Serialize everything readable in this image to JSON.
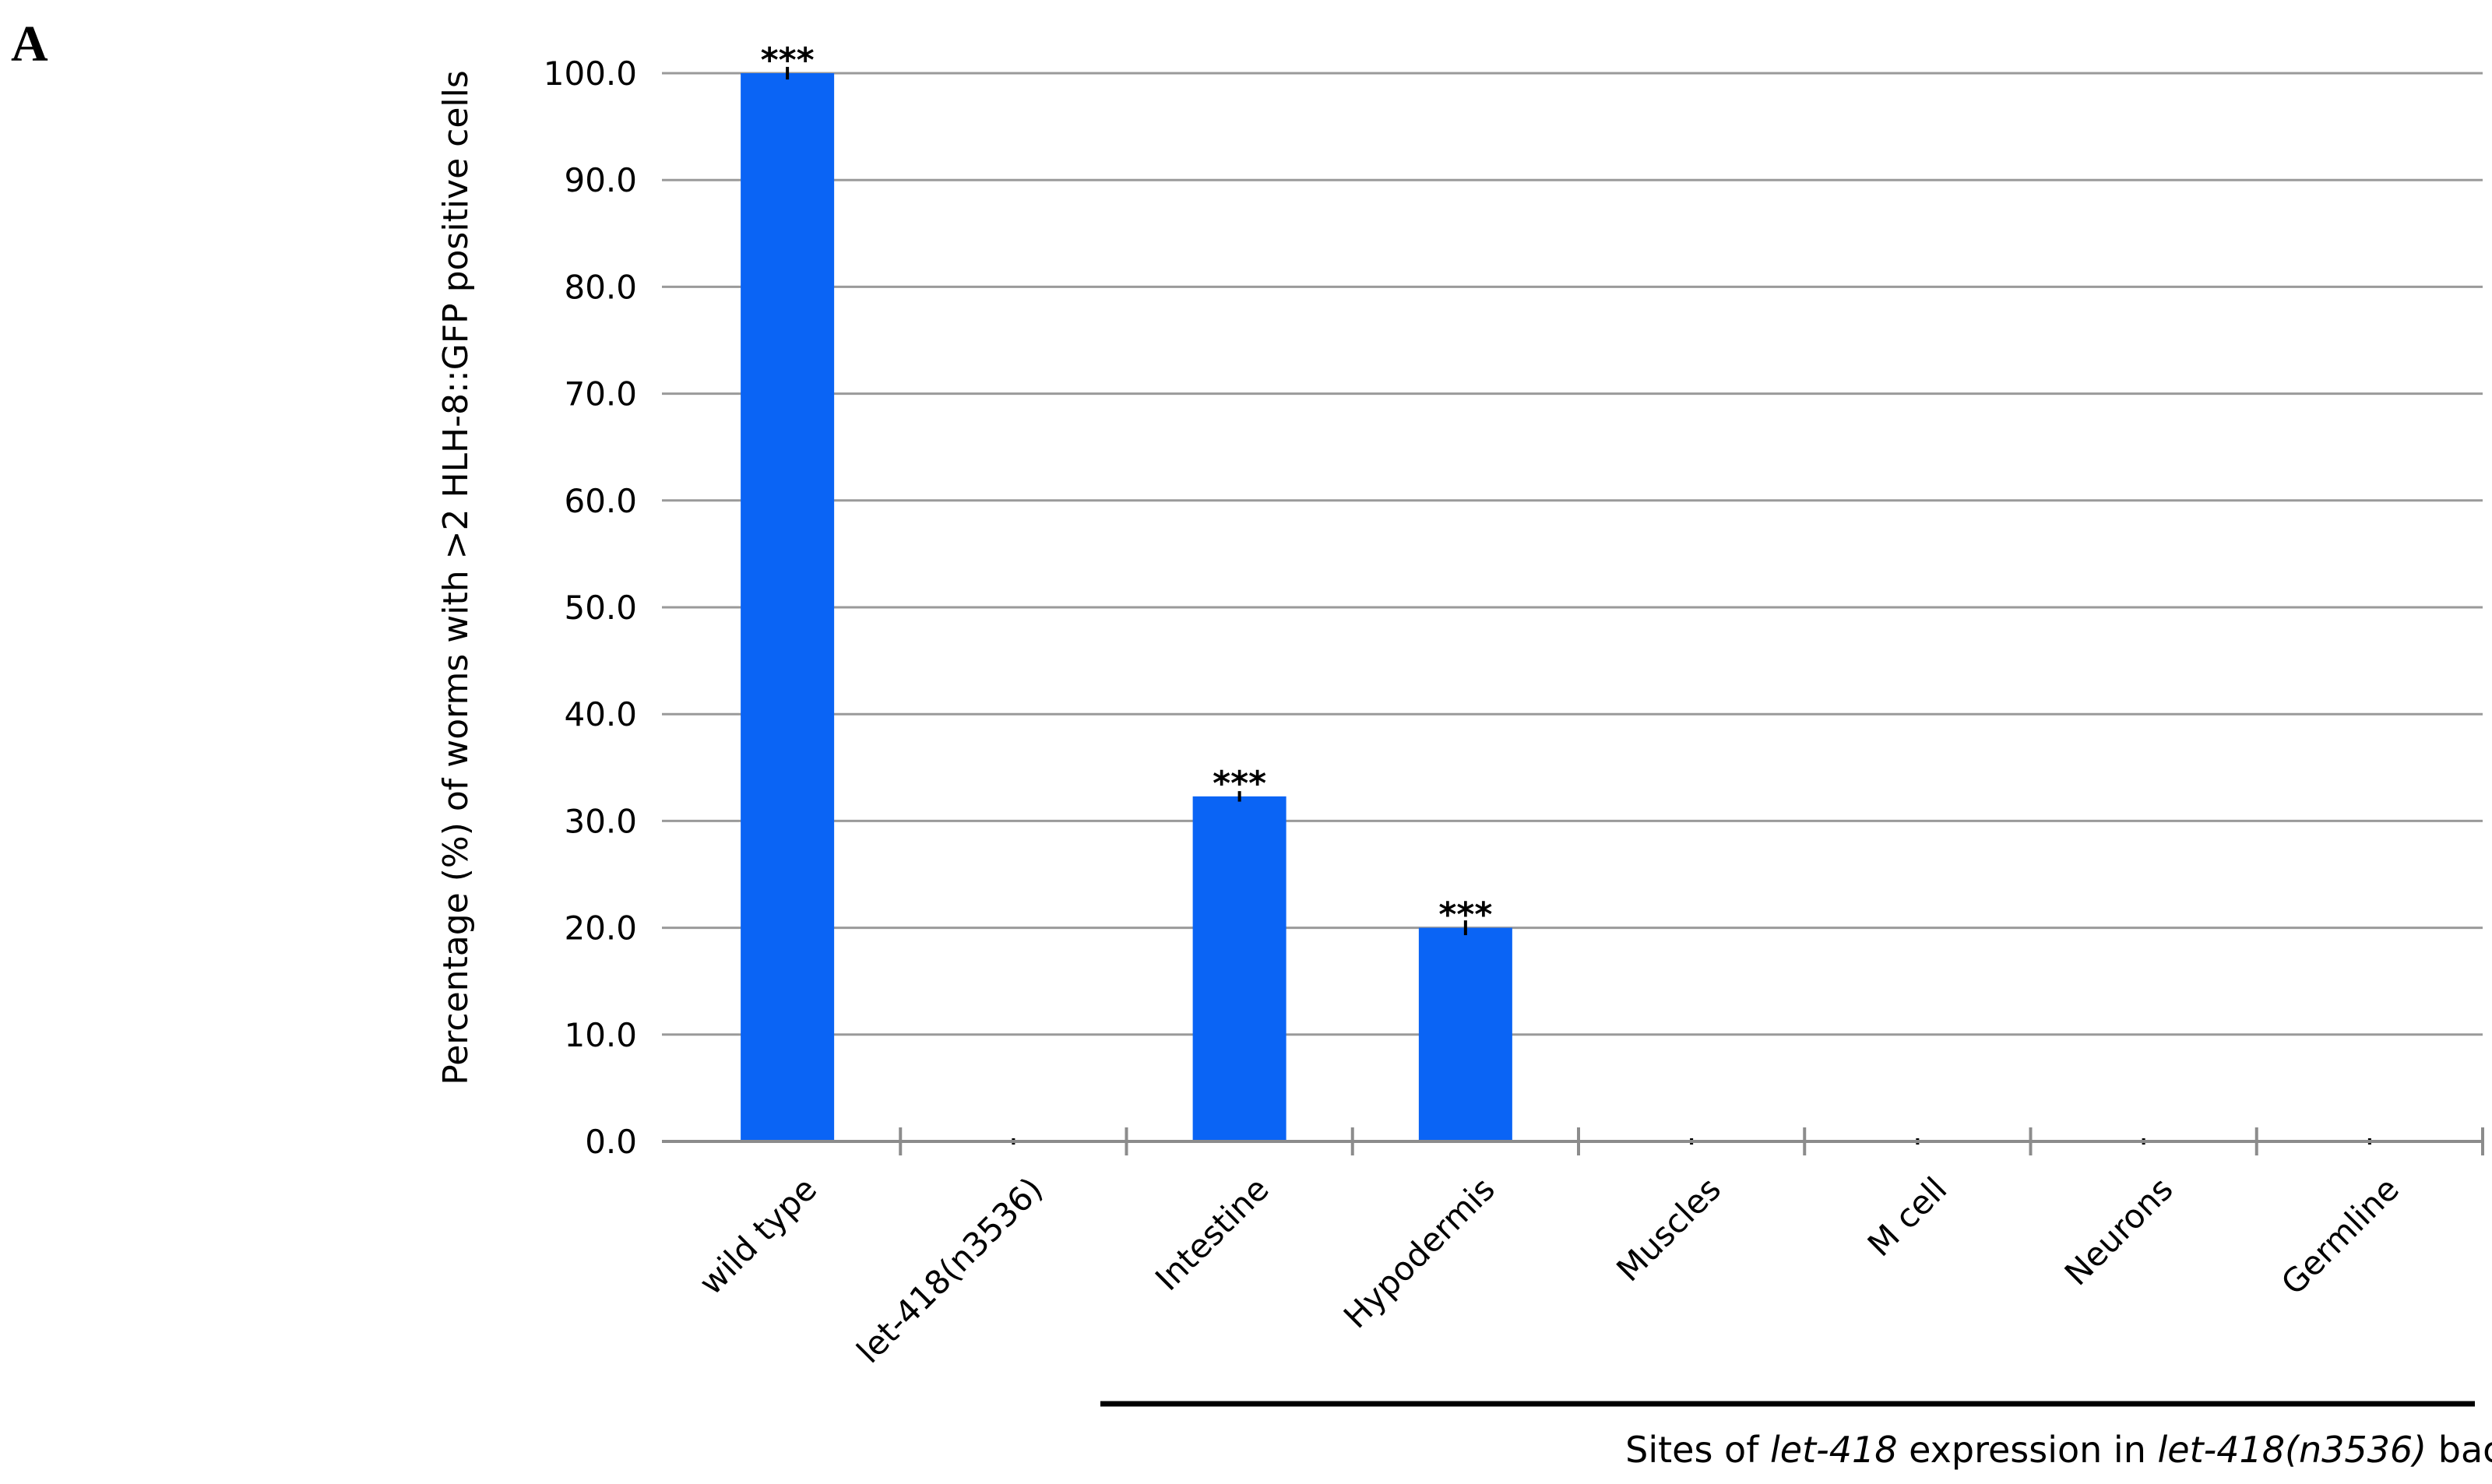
{
  "panel_label": "A",
  "chart_data": {
    "type": "bar",
    "ylabel": "Percentage (%) of worms with >2 HLH-8::GFP positive cells",
    "ylim": [
      0,
      100
    ],
    "yticks": [
      "0.0",
      "10.0",
      "20.0",
      "30.0",
      "40.0",
      "50.0",
      "60.0",
      "70.0",
      "80.0",
      "90.0",
      "100.0"
    ],
    "grid": true,
    "categories": [
      "wild type",
      "let-418(n3536)",
      "Intestine",
      "Hypodermis",
      "Muscles",
      "M cell",
      "Neurons",
      "Germline"
    ],
    "values": [
      100.0,
      0.0,
      32.3,
      20.0,
      0.0,
      0.0,
      0.0,
      0.0
    ],
    "errors": [
      0.3,
      0.0,
      0.2,
      0.4,
      0.0,
      0.0,
      0.0,
      0.0
    ],
    "annotations": [
      "***",
      "",
      "***",
      "***",
      "",
      "",
      "",
      ""
    ],
    "bar_color": "#0a64f5",
    "bracket": {
      "parts": [
        {
          "text": "Sites of ",
          "italic": false
        },
        {
          "text": "let-418",
          "italic": true
        },
        {
          "text": " expression in ",
          "italic": false
        },
        {
          "text": "let-418(n3536)",
          "italic": true
        },
        {
          "text": " background",
          "italic": false
        }
      ]
    }
  }
}
